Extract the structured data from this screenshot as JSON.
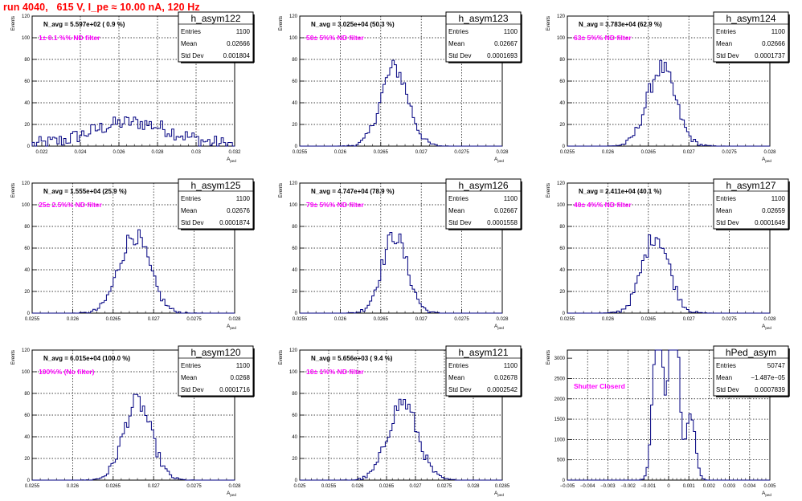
{
  "run_title": "run 4040,   615 V, I_pe ≈ 10.00 nA, 120 Hz",
  "axis_labels": {
    "y": "Events",
    "x_main": "A",
    "x_sub": "ped"
  },
  "stat_labels": {
    "entries": "Entries",
    "mean": "Mean",
    "std": "Std Dev"
  },
  "chart_data": [
    {
      "type": "bar",
      "title": "h_asym122",
      "note1": "N_avg = 5.597e+02 ( 0.9 %)",
      "note2": "1± 0.1 %% ND filter",
      "stats": {
        "entries": "1100",
        "mean": "0.02666",
        "std": "0.001804"
      },
      "xlim": [
        0.0215,
        0.032
      ],
      "ylim": [
        0,
        120
      ],
      "xticks": [
        0.022,
        0.024,
        0.026,
        0.028,
        0.03,
        0.032
      ],
      "xtick_labels": [
        "0.022",
        "0.024",
        "0.026",
        "0.028",
        "0.03",
        "0.032"
      ],
      "yticks": [
        0,
        20,
        40,
        60,
        80,
        100,
        120
      ],
      "ytick_labels": [
        "0",
        "20",
        "40",
        "60",
        "80",
        "100",
        "120"
      ],
      "hist": {
        "mean": 0.02666,
        "std": 0.001804,
        "shape": "wide"
      }
    },
    {
      "type": "bar",
      "title": "h_asym123",
      "note1": "N_avg = 3.025e+04 (50.3 %)",
      "note2": "50± 5%% ND filter",
      "stats": {
        "entries": "1100",
        "mean": "0.02667",
        "std": "0.0001693"
      },
      "xlim": [
        0.0255,
        0.028
      ],
      "ylim": [
        0,
        120
      ],
      "xticks": [
        0.0255,
        0.026,
        0.0265,
        0.027,
        0.0275,
        0.028
      ],
      "xtick_labels": [
        "0.0255",
        "0.026",
        "0.0265",
        "0.027",
        "0.0275",
        "0.028"
      ],
      "yticks": [
        0,
        20,
        40,
        60,
        80,
        100,
        120
      ],
      "ytick_labels": [
        "0",
        "20",
        "40",
        "60",
        "80",
        "100",
        "120"
      ],
      "hist": {
        "mean": 0.02667,
        "std": 0.0001693,
        "shape": "gauss"
      }
    },
    {
      "type": "bar",
      "title": "h_asym124",
      "note1": "N_avg = 3.783e+04 (62.9 %)",
      "note2": "63± 5%% ND filter",
      "stats": {
        "entries": "1100",
        "mean": "0.02666",
        "std": "0.0001737"
      },
      "xlim": [
        0.0255,
        0.028
      ],
      "ylim": [
        0,
        120
      ],
      "xticks": [
        0.0255,
        0.026,
        0.0265,
        0.027,
        0.0275,
        0.028
      ],
      "xtick_labels": [
        "0.0255",
        "0.026",
        "0.0265",
        "0.027",
        "0.0275",
        "0.028"
      ],
      "yticks": [
        0,
        20,
        40,
        60,
        80,
        100,
        120
      ],
      "ytick_labels": [
        "0",
        "20",
        "40",
        "60",
        "80",
        "100",
        "120"
      ],
      "hist": {
        "mean": 0.02666,
        "std": 0.0001737,
        "shape": "gauss"
      }
    },
    {
      "type": "bar",
      "title": "h_asym125",
      "note1": "N_avg = 1.555e+04 (25.9 %)",
      "note2": "25± 2.5%% ND filter",
      "stats": {
        "entries": "1100",
        "mean": "0.02676",
        "std": "0.0001874"
      },
      "xlim": [
        0.0255,
        0.028
      ],
      "ylim": [
        0,
        120
      ],
      "xticks": [
        0.0255,
        0.026,
        0.0265,
        0.027,
        0.0275,
        0.028
      ],
      "xtick_labels": [
        "0.0255",
        "0.026",
        "0.0265",
        "0.027",
        "0.0275",
        "0.028"
      ],
      "yticks": [
        0,
        20,
        40,
        60,
        80,
        100,
        120
      ],
      "ytick_labels": [
        "0",
        "20",
        "40",
        "60",
        "80",
        "100",
        "120"
      ],
      "hist": {
        "mean": 0.02676,
        "std": 0.0001874,
        "shape": "gauss"
      }
    },
    {
      "type": "bar",
      "title": "h_asym126",
      "note1": "N_avg = 4.747e+04 (78.9 %)",
      "note2": "79± 5%% ND filter",
      "stats": {
        "entries": "1100",
        "mean": "0.02667",
        "std": "0.0001558"
      },
      "xlim": [
        0.0255,
        0.028
      ],
      "ylim": [
        0,
        120
      ],
      "xticks": [
        0.0255,
        0.026,
        0.0265,
        0.027,
        0.0275,
        0.028
      ],
      "xtick_labels": [
        "0.0255",
        "0.026",
        "0.0265",
        "0.027",
        "0.0275",
        "0.028"
      ],
      "yticks": [
        0,
        20,
        40,
        60,
        80,
        100,
        120
      ],
      "ytick_labels": [
        "0",
        "20",
        "40",
        "60",
        "80",
        "100",
        "120"
      ],
      "hist": {
        "mean": 0.02667,
        "std": 0.0001558,
        "shape": "gauss"
      }
    },
    {
      "type": "bar",
      "title": "h_asym127",
      "note1": "N_avg = 2.411e+04 (40.1 %)",
      "note2": "40± 4%% ND filter",
      "stats": {
        "entries": "1100",
        "mean": "0.02659",
        "std": "0.0001649"
      },
      "xlim": [
        0.0255,
        0.028
      ],
      "ylim": [
        0,
        120
      ],
      "xticks": [
        0.0255,
        0.026,
        0.0265,
        0.027,
        0.0275,
        0.028
      ],
      "xtick_labels": [
        "0.0255",
        "0.026",
        "0.0265",
        "0.027",
        "0.0275",
        "0.028"
      ],
      "yticks": [
        0,
        20,
        40,
        60,
        80,
        100,
        120
      ],
      "ytick_labels": [
        "0",
        "20",
        "40",
        "60",
        "80",
        "100",
        "120"
      ],
      "hist": {
        "mean": 0.02659,
        "std": 0.0001649,
        "shape": "gauss"
      }
    },
    {
      "type": "bar",
      "title": "h_asym120",
      "note1": "N_avg = 6.015e+04 (100.0 %)",
      "note2": "100%% (No filter)",
      "stats": {
        "entries": "1100",
        "mean": "0.0268",
        "std": "0.0001716"
      },
      "xlim": [
        0.0255,
        0.028
      ],
      "ylim": [
        0,
        120
      ],
      "xticks": [
        0.0255,
        0.026,
        0.0265,
        0.027,
        0.0275,
        0.028
      ],
      "xtick_labels": [
        "0.0255",
        "0.026",
        "0.0265",
        "0.027",
        "0.0275",
        "0.028"
      ],
      "yticks": [
        0,
        20,
        40,
        60,
        80,
        100,
        120
      ],
      "ytick_labels": [
        "0",
        "20",
        "40",
        "60",
        "80",
        "100",
        "120"
      ],
      "hist": {
        "mean": 0.0268,
        "std": 0.0001716,
        "shape": "gauss"
      }
    },
    {
      "type": "bar",
      "title": "h_asym121",
      "note1": "N_avg = 5.656e+03 ( 9.4 %)",
      "note2": "10± 1%% ND filter",
      "stats": {
        "entries": "1100",
        "mean": "0.02678",
        "std": "0.0002542"
      },
      "xlim": [
        0.025,
        0.0285
      ],
      "ylim": [
        0,
        120
      ],
      "xticks": [
        0.025,
        0.0255,
        0.026,
        0.0265,
        0.027,
        0.0275,
        0.028,
        0.0285
      ],
      "xtick_labels": [
        "0.025",
        "0.0255",
        "0.026",
        "0.0265",
        "0.027",
        "0.0275",
        "0.028",
        "0.0285"
      ],
      "yticks": [
        0,
        20,
        40,
        60,
        80,
        100,
        120
      ],
      "ytick_labels": [
        "0",
        "20",
        "40",
        "60",
        "80",
        "100",
        "120"
      ],
      "hist": {
        "mean": 0.02678,
        "std": 0.0002542,
        "shape": "gauss"
      }
    },
    {
      "type": "bar",
      "title": "hPed_asym",
      "note1": "",
      "note2": "Shutter Closerd",
      "stats": {
        "entries": "50747",
        "mean": "−1.487e−05",
        "std": "0.0007839"
      },
      "xlim": [
        -0.005,
        0.005
      ],
      "ylim": [
        0,
        3200
      ],
      "xticks": [
        -0.005,
        -0.004,
        -0.003,
        -0.002,
        -0.001,
        0,
        0.001,
        0.002,
        0.003,
        0.004,
        0.005
      ],
      "xtick_labels": [
        "−0.005",
        "−0.004",
        "−0.003",
        "−0.002",
        "−0.001",
        "0",
        "0.001",
        "0.002",
        "0.003",
        "0.004",
        "0.005"
      ],
      "yticks": [
        0,
        500,
        1000,
        1500,
        2000,
        2500,
        3000
      ],
      "ytick_labels": [
        "0",
        "500",
        "1000",
        "1500",
        "2000",
        "2500",
        "3000"
      ],
      "hist": {
        "mean": -1.487e-05,
        "std": 0.0007839,
        "shape": "multi"
      }
    }
  ],
  "colors": {
    "line": "#000080",
    "note": "#ff00ff",
    "title": "#ff0000",
    "grid": "#000000"
  }
}
